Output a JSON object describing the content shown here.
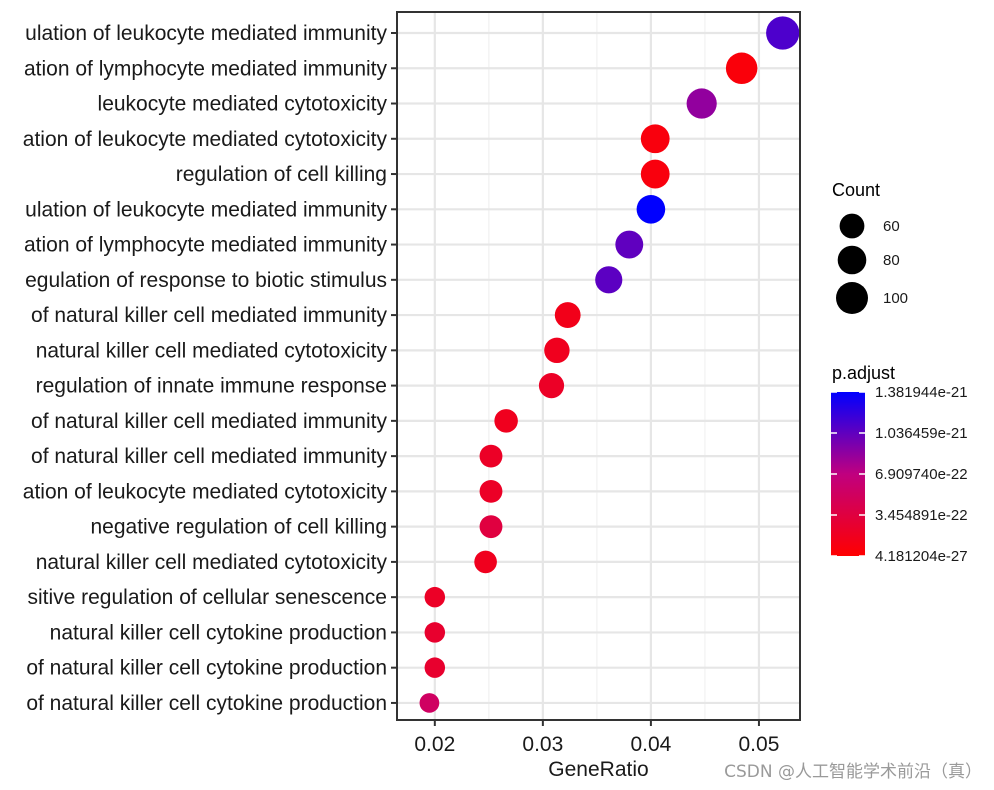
{
  "chart_data": {
    "type": "scatter",
    "subtype": "dotplot",
    "xlabel": "GeneRatio",
    "xlim": [
      0.0165,
      0.0538
    ],
    "xticks": [
      0.02,
      0.03,
      0.04,
      0.05
    ],
    "xtick_labels": [
      "0.02",
      "0.03",
      "0.04",
      "0.05"
    ],
    "grid": true,
    "terms": [
      {
        "label": "ulation of leukocyte mediated immunity",
        "gene_ratio": 0.0522,
        "count": 108,
        "p_adjust_frac": 0.8
      },
      {
        "label": "ation of lymphocyte mediated immunity",
        "gene_ratio": 0.0484,
        "count": 97,
        "p_adjust_frac": 0.04
      },
      {
        "label": "leukocyte mediated cytotoxicity",
        "gene_ratio": 0.0447,
        "count": 89,
        "p_adjust_frac": 0.62
      },
      {
        "label": "ation of leukocyte mediated cytotoxicity",
        "gene_ratio": 0.0404,
        "count": 81,
        "p_adjust_frac": 0.05
      },
      {
        "label": "regulation of cell killing",
        "gene_ratio": 0.0404,
        "count": 81,
        "p_adjust_frac": 0.05
      },
      {
        "label": "ulation of leukocyte mediated immunity",
        "gene_ratio": 0.04,
        "count": 80,
        "p_adjust_frac": 1.0
      },
      {
        "label": "ation of lymphocyte mediated immunity",
        "gene_ratio": 0.038,
        "count": 76,
        "p_adjust_frac": 0.75
      },
      {
        "label": "egulation of response to biotic stimulus",
        "gene_ratio": 0.0361,
        "count": 72,
        "p_adjust_frac": 0.76
      },
      {
        "label": "of natural killer cell mediated immunity",
        "gene_ratio": 0.0323,
        "count": 65,
        "p_adjust_frac": 0.1
      },
      {
        "label": "natural killer cell mediated cytotoxicity",
        "gene_ratio": 0.0313,
        "count": 63,
        "p_adjust_frac": 0.12
      },
      {
        "label": "regulation of innate immune response",
        "gene_ratio": 0.0308,
        "count": 62,
        "p_adjust_frac": 0.15
      },
      {
        "label": "of natural killer cell mediated immunity",
        "gene_ratio": 0.0266,
        "count": 54,
        "p_adjust_frac": 0.12
      },
      {
        "label": "of natural killer cell mediated immunity",
        "gene_ratio": 0.0252,
        "count": 51,
        "p_adjust_frac": 0.15
      },
      {
        "label": "ation of leukocyte mediated cytotoxicity",
        "gene_ratio": 0.0252,
        "count": 51,
        "p_adjust_frac": 0.15
      },
      {
        "label": "negative regulation of cell killing",
        "gene_ratio": 0.0252,
        "count": 51,
        "p_adjust_frac": 0.25
      },
      {
        "label": "natural killer cell mediated cytotoxicity",
        "gene_ratio": 0.0247,
        "count": 50,
        "p_adjust_frac": 0.12
      },
      {
        "label": "sitive regulation of cellular senescence",
        "gene_ratio": 0.02,
        "count": 41,
        "p_adjust_frac": 0.15
      },
      {
        "label": "natural killer cell cytokine production",
        "gene_ratio": 0.02,
        "count": 41,
        "p_adjust_frac": 0.18
      },
      {
        "label": "of natural killer cell cytokine production",
        "gene_ratio": 0.02,
        "count": 41,
        "p_adjust_frac": 0.18
      },
      {
        "label": "of natural killer cell cytokine production",
        "gene_ratio": 0.0195,
        "count": 38,
        "p_adjust_frac": 0.38
      }
    ],
    "size_legend": {
      "title": "Count",
      "entries": [
        {
          "label": "60",
          "value": 60
        },
        {
          "label": "80",
          "value": 80
        },
        {
          "label": "100",
          "value": 100
        }
      ]
    },
    "color_legend": {
      "title": "p.adjust",
      "low_color": "#FF0000",
      "high_color": "#0000FF",
      "labels": [
        "1.381944e-21",
        "1.036459e-21",
        "6.909740e-22",
        "3.454891e-22",
        "4.181204e-27"
      ]
    }
  },
  "watermark": "CSDN @人工智能学术前沿（真）"
}
